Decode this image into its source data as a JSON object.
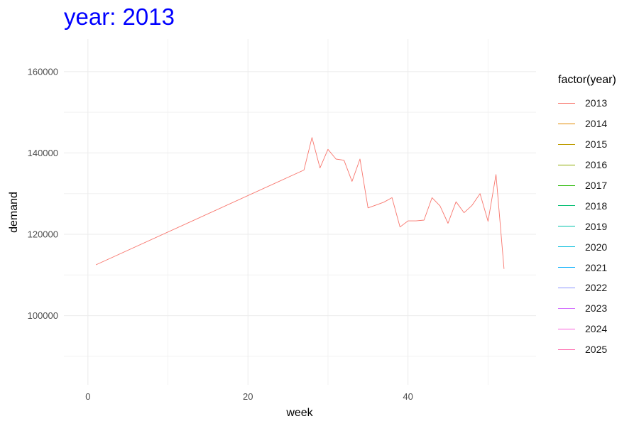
{
  "chart_data": {
    "type": "line",
    "title": "year: 2013",
    "xlabel": "week",
    "ylabel": "demand",
    "xlim": [
      -3,
      56
    ],
    "ylim": [
      83000,
      168000
    ],
    "x_ticks": [
      0,
      20,
      40
    ],
    "x_tick_labels": [
      "0",
      "20",
      "40"
    ],
    "y_ticks": [
      100000,
      120000,
      140000,
      160000
    ],
    "y_tick_labels": [
      "100000",
      "120000",
      "140000",
      "160000"
    ],
    "grid": true,
    "legend": {
      "title": "factor(year)",
      "placement": "right",
      "entries": [
        {
          "label": "2013",
          "color": "#F8766D"
        },
        {
          "label": "2014",
          "color": "#E18A00"
        },
        {
          "label": "2015",
          "color": "#BE9C00"
        },
        {
          "label": "2016",
          "color": "#8CAB00"
        },
        {
          "label": "2017",
          "color": "#24B700"
        },
        {
          "label": "2018",
          "color": "#00BE70"
        },
        {
          "label": "2019",
          "color": "#00C1AB"
        },
        {
          "label": "2020",
          "color": "#00BBDA"
        },
        {
          "label": "2021",
          "color": "#00ACFC"
        },
        {
          "label": "2022",
          "color": "#8B93FF"
        },
        {
          "label": "2023",
          "color": "#D575FE"
        },
        {
          "label": "2024",
          "color": "#F962DD"
        },
        {
          "label": "2025",
          "color": "#FF65AC"
        }
      ]
    },
    "series": [
      {
        "name": "2013",
        "color": "#F8766D",
        "x": [
          1,
          27,
          28,
          29,
          30,
          31,
          32,
          33,
          34,
          35,
          36,
          37,
          38,
          39,
          40,
          41,
          42,
          43,
          44,
          45,
          46,
          47,
          48,
          49,
          50,
          51,
          52
        ],
        "y": [
          112500,
          135800,
          143800,
          136300,
          140900,
          138500,
          138200,
          133000,
          138500,
          126500,
          127200,
          127900,
          129000,
          121800,
          123300,
          123300,
          123500,
          129000,
          127000,
          122700,
          128000,
          125300,
          127100,
          130000,
          123200,
          134700,
          111500
        ]
      }
    ]
  }
}
